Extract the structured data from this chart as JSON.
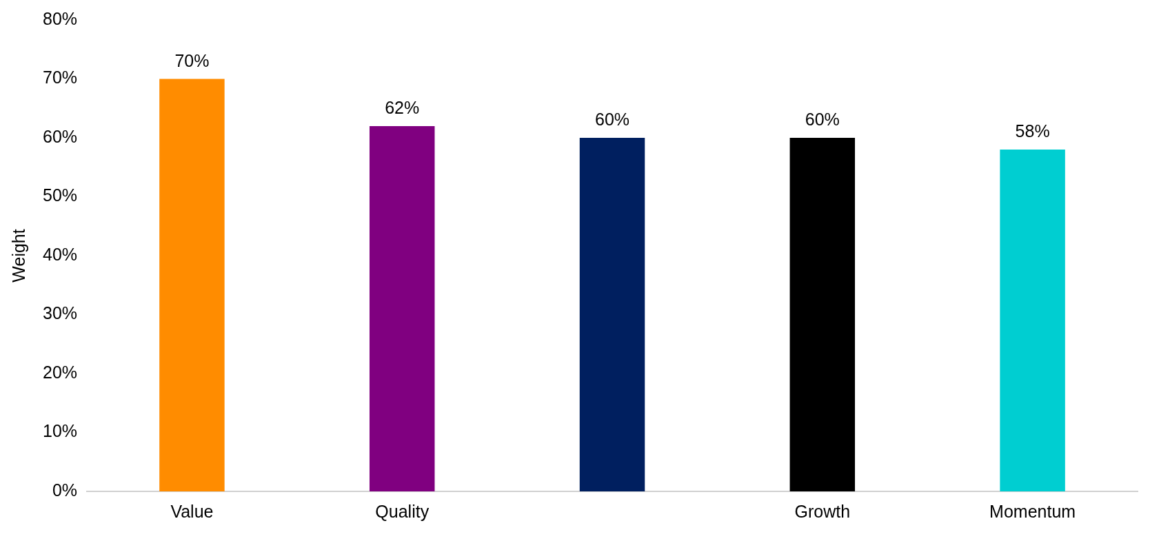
{
  "chart_data": {
    "type": "bar",
    "ylabel": "Weight",
    "categories": [
      "Value",
      "Quality",
      null,
      "Growth",
      "Momentum"
    ],
    "values": [
      70,
      62,
      60,
      60,
      58
    ],
    "colors": [
      "#ff8c00",
      "#800080",
      "#001f5f",
      "#000000",
      "#00ced1"
    ],
    "value_labels": [
      "70%",
      "62%",
      "60%",
      "60%",
      "58%"
    ],
    "ylim": [
      0,
      80
    ],
    "yticks": [
      {
        "value": 0,
        "label": "0%"
      },
      {
        "value": 10,
        "label": "10%"
      },
      {
        "value": 20,
        "label": "20%"
      },
      {
        "value": 30,
        "label": "30%"
      },
      {
        "value": 40,
        "label": "40%"
      },
      {
        "value": 50,
        "label": "50%"
      },
      {
        "value": 60,
        "label": "60%"
      },
      {
        "value": 70,
        "label": "70%"
      },
      {
        "value": 80,
        "label": "80%"
      }
    ],
    "grid": false,
    "legend": false
  }
}
